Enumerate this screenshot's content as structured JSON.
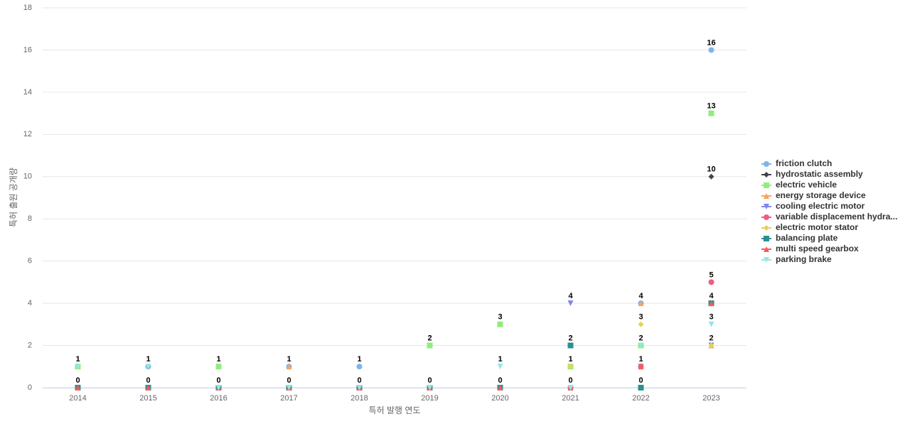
{
  "chart_data": {
    "type": "line",
    "x_label": "특허 발행 연도",
    "y_label": "특허 출원 공개량",
    "categories": [
      "2014",
      "2015",
      "2016",
      "2017",
      "2018",
      "2019",
      "2020",
      "2021",
      "2022",
      "2023"
    ],
    "ylim": [
      0,
      18
    ],
    "yticks": [
      0,
      2,
      4,
      6,
      8,
      10,
      12,
      14,
      16,
      18
    ],
    "grid": true,
    "legend": "right",
    "series": [
      {
        "name": "friction clutch",
        "color": "#7cb5ec",
        "marker": "circle",
        "values": [
          0,
          1,
          1,
          1,
          1,
          0,
          0,
          0,
          4,
          16
        ]
      },
      {
        "name": "hydrostatic assembly",
        "color": "#434348",
        "marker": "diamond",
        "values": [
          0,
          0,
          0,
          0,
          0,
          0,
          0,
          0,
          2,
          10
        ]
      },
      {
        "name": "electric vehicle",
        "color": "#90ed7d",
        "marker": "square",
        "values": [
          1,
          0,
          1,
          0,
          0,
          2,
          3,
          1,
          2,
          13
        ]
      },
      {
        "name": "energy storage device",
        "color": "#f7a35c",
        "marker": "triangle",
        "values": [
          0,
          0,
          0,
          1,
          0,
          0,
          0,
          2,
          4,
          2
        ]
      },
      {
        "name": "cooling electric motor",
        "color": "#8085e9",
        "marker": "triangle-down",
        "values": [
          0,
          0,
          0,
          0,
          0,
          0,
          0,
          4,
          1,
          2
        ]
      },
      {
        "name": "variable displacement hydra...",
        "color": "#f15c80",
        "marker": "circle",
        "values": [
          0,
          0,
          0,
          0,
          0,
          0,
          0,
          0,
          1,
          5
        ]
      },
      {
        "name": "electric motor stator",
        "color": "#e4d354",
        "marker": "diamond",
        "values": [
          0,
          0,
          0,
          0,
          0,
          0,
          0,
          1,
          3,
          2
        ]
      },
      {
        "name": "balancing plate",
        "color": "#2b908f",
        "marker": "square",
        "values": [
          0,
          0,
          0,
          0,
          0,
          0,
          0,
          2,
          0,
          4
        ]
      },
      {
        "name": "multi speed gearbox",
        "color": "#f45b5b",
        "marker": "triangle",
        "values": [
          0,
          0,
          0,
          0,
          0,
          0,
          0,
          0,
          1,
          4
        ]
      },
      {
        "name": "parking brake",
        "color": "#91e8e1",
        "marker": "triangle-down",
        "values": [
          1,
          1,
          0,
          0,
          0,
          0,
          1,
          0,
          2,
          3
        ]
      }
    ]
  }
}
